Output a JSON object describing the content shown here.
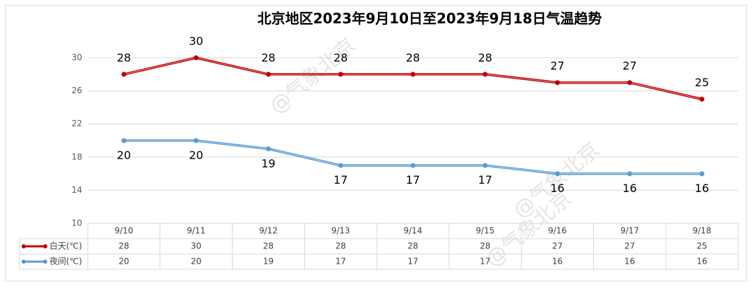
{
  "chart_data": {
    "type": "line",
    "title": "北京地区2023年9月10日至2023年9月18日气温趋势",
    "watermark": "@气象北京",
    "categories": [
      "9/10",
      "9/11",
      "9/12",
      "9/13",
      "9/14",
      "9/15",
      "9/16",
      "9/17",
      "9/18"
    ],
    "series": [
      {
        "name": "白天(℃)",
        "color": "#c00000",
        "values": [
          28,
          30,
          28,
          28,
          28,
          28,
          27,
          27,
          25
        ]
      },
      {
        "name": "夜间(℃)",
        "color": "#5b9bd5",
        "values": [
          20,
          20,
          19,
          17,
          17,
          17,
          16,
          16,
          16
        ]
      }
    ],
    "ylim": [
      10,
      30
    ],
    "yticks": [
      10,
      14,
      18,
      22,
      26,
      30
    ],
    "grid": true
  }
}
